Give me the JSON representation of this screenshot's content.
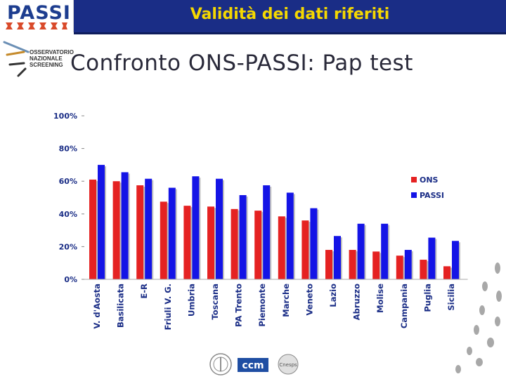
{
  "header": {
    "logo_text": "PASSI",
    "title": "Validità dei dati riferiti",
    "subtitle": "Confronto ONS-PASSI: Pap test",
    "ons_logo_text": "OSSERVATORIO\nNAZIONALE\nSCREENING"
  },
  "colors": {
    "title_bar": "#1a2d86",
    "title_text": "#f5d800",
    "ons": "#e52222",
    "passi": "#1414e6",
    "axis_text": "#1a2d86"
  },
  "footer": {
    "logo_center_text": "ccm",
    "logo_right_text": "Cnesps"
  },
  "chart_data": {
    "type": "bar",
    "categories": [
      "V. d'Aosta",
      "Basilicata",
      "E-R",
      "Friuli V. G.",
      "Umbria",
      "Toscana",
      "PA Trento",
      "Piemonte",
      "Marche",
      "Veneto",
      "Lazio",
      "Abruzzo",
      "Molise",
      "Campania",
      "Puglia",
      "Sicilia"
    ],
    "series": [
      {
        "name": "ONS",
        "color": "#e52222",
        "values": [
          61,
          60,
          57.5,
          47.5,
          45,
          44.5,
          43,
          42,
          38.5,
          36,
          18,
          18,
          17,
          14.5,
          12,
          8
        ]
      },
      {
        "name": "PASSI",
        "color": "#1414e6",
        "values": [
          70,
          65.5,
          61.5,
          56,
          63,
          61.5,
          51.5,
          57.5,
          53,
          43.5,
          26.5,
          34,
          34,
          18,
          25.5,
          23.5
        ]
      }
    ],
    "yticks": [
      "0%",
      "20%",
      "40%",
      "60%",
      "80%",
      "100%"
    ],
    "ylim": [
      0,
      100
    ],
    "legend_position": "right",
    "grid": false
  }
}
